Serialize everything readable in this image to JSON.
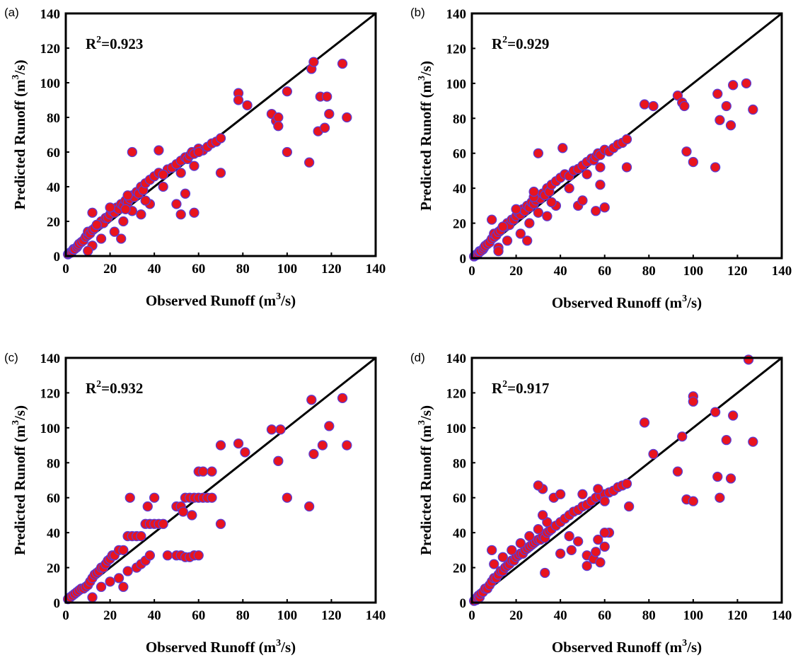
{
  "chart_data": [
    {
      "type": "scatter",
      "panel_label": "(a)",
      "xlabel_text": "Observed Runoff (m",
      "xlabel_sup": "3",
      "xlabel_tail": "/s)",
      "ylabel_text": "Predicted Runoff (m",
      "ylabel_sup": "3",
      "ylabel_tail": "/s)",
      "xlim": [
        0,
        140
      ],
      "ylim": [
        0,
        140
      ],
      "xticks": [
        "0",
        "20",
        "40",
        "60",
        "80",
        "100",
        "120",
        "140"
      ],
      "yticks": [
        "0",
        "20",
        "40",
        "60",
        "80",
        "100",
        "120",
        "140"
      ],
      "annotation": {
        "r": "R",
        "sup": "2",
        "value": "=0.923"
      },
      "reference_line": "y = x",
      "point_color": "#e8141e",
      "edge_color": "#5a3bd6",
      "x": [
        1,
        1.5,
        2,
        2.5,
        3,
        3.5,
        4,
        5,
        5.5,
        6,
        7,
        8,
        9,
        10,
        10,
        11,
        12,
        13,
        14,
        15,
        16,
        17,
        18,
        19,
        20,
        21,
        22,
        23,
        24,
        25,
        26,
        27,
        28,
        29,
        30,
        31,
        32,
        33,
        34,
        35,
        36,
        38,
        40,
        42,
        44,
        46,
        48,
        50,
        52,
        54,
        55,
        56,
        57,
        58,
        60,
        62,
        64,
        66,
        68,
        70,
        12,
        16,
        22,
        26,
        30,
        34,
        38,
        14,
        20,
        28,
        36,
        44,
        52,
        58,
        10,
        12,
        25,
        27,
        30,
        42,
        44,
        50,
        52,
        54,
        58,
        60,
        70,
        78,
        78,
        82,
        93,
        95,
        96,
        96,
        100,
        100,
        110,
        111,
        112,
        114,
        115,
        117,
        118,
        119,
        125,
        127
      ],
      "y": [
        1,
        1.5,
        2,
        2,
        3,
        4,
        4,
        5,
        6,
        7,
        8,
        9,
        11,
        12,
        14,
        13,
        15,
        16,
        18,
        18,
        20,
        19,
        22,
        22,
        24,
        26,
        25,
        28,
        27,
        30,
        29,
        32,
        31,
        33,
        35,
        34,
        37,
        36,
        40,
        38,
        42,
        44,
        46,
        48,
        47,
        50,
        51,
        53,
        55,
        57,
        56,
        58,
        60,
        59,
        62,
        61,
        63,
        65,
        66,
        68,
        6,
        10,
        14,
        20,
        26,
        24,
        30,
        18,
        28,
        35,
        32,
        40,
        48,
        52,
        3,
        25,
        10,
        27,
        60,
        61,
        47,
        30,
        24,
        36,
        25,
        60,
        48,
        94,
        90,
        87,
        82,
        78,
        80,
        75,
        95,
        60,
        54,
        108,
        112,
        72,
        92,
        74,
        92,
        82,
        111,
        80
      ]
    },
    {
      "type": "scatter",
      "panel_label": "(b)",
      "xlabel_text": "Observed Runoff (m",
      "xlabel_sup": "3",
      "xlabel_tail": "/s)",
      "ylabel_text": "Predicted Runoff (m",
      "ylabel_sup": "3",
      "ylabel_tail": "/s)",
      "xlim": [
        0,
        140
      ],
      "ylim": [
        0,
        140
      ],
      "xticks": [
        "0",
        "20",
        "40",
        "60",
        "80",
        "100",
        "120",
        "140"
      ],
      "yticks": [
        "0",
        "20",
        "40",
        "60",
        "80",
        "100",
        "120",
        "140"
      ],
      "annotation": {
        "r": "R",
        "sup": "2",
        "value": "=0.929"
      },
      "reference_line": "y = x",
      "point_color": "#e8141e",
      "edge_color": "#5a3bd6",
      "x": [
        1,
        1.5,
        2,
        2.5,
        3,
        3.5,
        4,
        5,
        5.5,
        6,
        7,
        8,
        9,
        10,
        10,
        11,
        12,
        13,
        14,
        15,
        16,
        17,
        18,
        19,
        20,
        21,
        22,
        23,
        24,
        25,
        26,
        27,
        28,
        29,
        30,
        31,
        32,
        33,
        34,
        35,
        36,
        38,
        40,
        42,
        44,
        46,
        48,
        50,
        52,
        54,
        55,
        56,
        57,
        58,
        60,
        62,
        64,
        66,
        68,
        70,
        12,
        16,
        22,
        26,
        30,
        34,
        38,
        14,
        20,
        28,
        36,
        44,
        52,
        58,
        9,
        12,
        25,
        28,
        30,
        41,
        48,
        50,
        56,
        58,
        60,
        70,
        78,
        82,
        93,
        95,
        96,
        97,
        100,
        110,
        111,
        112,
        115,
        117,
        118,
        124,
        127
      ],
      "y": [
        1,
        1.5,
        2,
        2,
        3,
        4,
        4,
        5,
        6,
        7,
        8,
        9,
        11,
        12,
        14,
        13,
        15,
        16,
        18,
        18,
        20,
        19,
        22,
        22,
        24,
        26,
        25,
        28,
        27,
        30,
        29,
        32,
        31,
        33,
        35,
        34,
        37,
        36,
        40,
        38,
        42,
        44,
        46,
        48,
        47,
        50,
        51,
        53,
        55,
        57,
        56,
        58,
        60,
        59,
        62,
        61,
        63,
        65,
        66,
        68,
        6,
        10,
        14,
        20,
        26,
        24,
        30,
        18,
        28,
        35,
        32,
        40,
        48,
        52,
        22,
        4,
        10,
        38,
        60,
        63,
        30,
        33,
        27,
        42,
        29,
        52,
        88,
        87,
        93,
        89,
        87,
        61,
        55,
        52,
        94,
        79,
        87,
        76,
        99,
        100,
        85
      ]
    },
    {
      "type": "scatter",
      "panel_label": "(c)",
      "xlabel_text": "Observed Runoff (m",
      "xlabel_sup": "3",
      "xlabel_tail": "/s)",
      "ylabel_text": "Predicted Runoff (m",
      "ylabel_sup": "3",
      "ylabel_tail": "/s)",
      "xlim": [
        0,
        140
      ],
      "ylim": [
        0,
        140
      ],
      "xticks": [
        "0",
        "20",
        "40",
        "60",
        "80",
        "100",
        "120",
        "140"
      ],
      "yticks": [
        "0",
        "20",
        "40",
        "60",
        "80",
        "100",
        "120",
        "140"
      ],
      "annotation": {
        "r": "R",
        "sup": "2",
        "value": "=0.932"
      },
      "reference_line": "y = x",
      "point_color": "#e8141e",
      "edge_color": "#5a3bd6",
      "x": [
        1,
        2,
        3,
        4,
        5,
        6,
        7,
        8,
        9,
        10,
        11,
        12,
        13,
        14,
        15,
        16,
        17,
        18,
        19,
        20,
        21,
        22,
        24,
        26,
        28,
        30,
        32,
        34,
        36,
        38,
        40,
        42,
        44,
        50,
        52,
        54,
        56,
        58,
        60,
        62,
        64,
        66,
        12,
        16,
        20,
        24,
        28,
        32,
        34,
        36,
        38,
        46,
        50,
        52,
        54,
        56,
        58,
        60,
        66,
        70,
        26,
        29,
        37,
        40,
        53,
        57,
        60,
        62,
        70,
        78,
        81,
        93,
        96,
        97,
        100,
        110,
        111,
        112,
        116,
        119,
        125,
        127
      ],
      "y": [
        2,
        3,
        4,
        5,
        6,
        7,
        8,
        8,
        9,
        10,
        12,
        14,
        16,
        17,
        18,
        20,
        20,
        22,
        24,
        25,
        27,
        27,
        30,
        30,
        38,
        38,
        38,
        38,
        45,
        45,
        45,
        45,
        45,
        55,
        55,
        60,
        60,
        60,
        60,
        60,
        60,
        60,
        3,
        9,
        12,
        14,
        18,
        20,
        22,
        24,
        27,
        27,
        27,
        27,
        26,
        26,
        27,
        27,
        75,
        90,
        9,
        60,
        55,
        60,
        52,
        50,
        75,
        75,
        45,
        91,
        86,
        99,
        81,
        99,
        60,
        55,
        116,
        85,
        90,
        101,
        117,
        90
      ]
    },
    {
      "type": "scatter",
      "panel_label": "(d)",
      "xlabel_text": "Observed Runoff (m",
      "xlabel_sup": "3",
      "xlabel_tail": "/s)",
      "ylabel_text": "Predicted Runoff (m",
      "ylabel_sup": "3",
      "ylabel_tail": "/s)",
      "xlim": [
        0,
        140
      ],
      "ylim": [
        0,
        140
      ],
      "xticks": [
        "0",
        "20",
        "40",
        "60",
        "80",
        "100",
        "120",
        "140"
      ],
      "yticks": [
        "0",
        "20",
        "40",
        "60",
        "80",
        "100",
        "120",
        "140"
      ],
      "annotation": {
        "r": "R",
        "sup": "2",
        "value": "=0.917"
      },
      "reference_line": "y = x",
      "point_color": "#e8141e",
      "edge_color": "#5a3bd6",
      "x": [
        1,
        1.5,
        2,
        2.5,
        3,
        3.5,
        4,
        5,
        6,
        7,
        8,
        9,
        10,
        11,
        12,
        13,
        14,
        15,
        16,
        17,
        18,
        19,
        20,
        21,
        22,
        23,
        24,
        25,
        26,
        27,
        28,
        29,
        30,
        31,
        32,
        33,
        34,
        35,
        36,
        38,
        40,
        42,
        44,
        46,
        48,
        50,
        52,
        54,
        56,
        58,
        60,
        62,
        64,
        66,
        68,
        70,
        10,
        14,
        18,
        22,
        26,
        30,
        34,
        40,
        45,
        52,
        55,
        58,
        60,
        62,
        32,
        37,
        40,
        50,
        57,
        60,
        9,
        30,
        32,
        33,
        44,
        48,
        52,
        56,
        57,
        60,
        71,
        78,
        82,
        93,
        95,
        97,
        100,
        100,
        100,
        110,
        111,
        112,
        115,
        117,
        118,
        125,
        127
      ],
      "y": [
        1,
        2,
        1.5,
        3,
        4,
        3,
        5,
        6,
        8,
        8,
        10,
        12,
        14,
        14,
        16,
        18,
        18,
        20,
        21,
        22,
        24,
        24,
        26,
        27,
        28,
        28,
        30,
        31,
        32,
        33,
        34,
        35,
        36,
        36,
        38,
        37,
        40,
        41,
        42,
        44,
        46,
        48,
        50,
        52,
        53,
        55,
        56,
        58,
        60,
        61,
        62,
        63,
        64,
        66,
        67,
        68,
        22,
        26,
        30,
        34,
        38,
        42,
        46,
        28,
        30,
        27,
        25,
        23,
        32,
        40,
        65,
        60,
        62,
        62,
        65,
        58,
        30,
        67,
        50,
        17,
        38,
        35,
        21,
        29,
        36,
        40,
        55,
        103,
        85,
        75,
        95,
        59,
        118,
        115,
        58,
        109,
        72,
        60,
        93,
        71,
        107,
        139,
        92
      ]
    }
  ]
}
